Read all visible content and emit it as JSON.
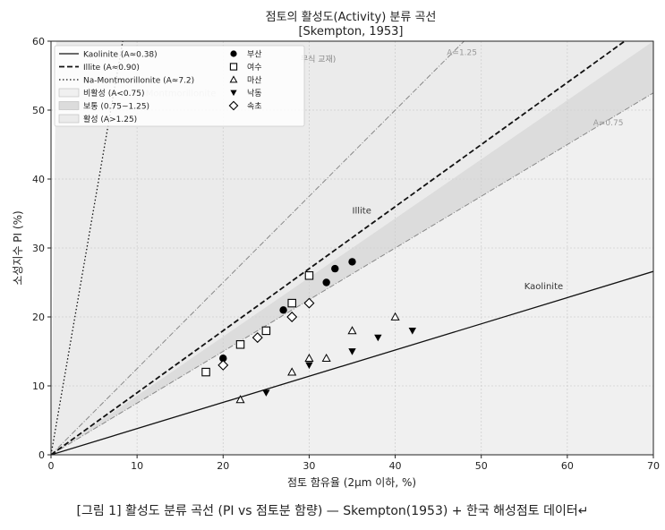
{
  "chart_data": {
    "type": "scatter",
    "title": "점토의 활성도(Activity) 분류 곡선",
    "subtitle": "[Skempton, 1953]",
    "xlabel": "점토 함유율 (2μm 이하, %)",
    "ylabel": "소성지수 PI (%)",
    "xlim": [
      0,
      70
    ],
    "ylim": [
      0,
      60
    ],
    "x_ticks": [
      0,
      10,
      20,
      30,
      40,
      50,
      60,
      70
    ],
    "y_ticks": [
      0,
      10,
      20,
      30,
      40,
      50,
      60
    ],
    "grid": true,
    "legend_placement": "top-left",
    "zones": [
      {
        "label": "비활성 (A<0.75)",
        "a_min": 0,
        "a_max": 0.75,
        "color": "#f0f0f0"
      },
      {
        "label": "보통 (0.75~1.25)",
        "a_min": 0.75,
        "a_max": 1.25,
        "color": "#dcdcdc"
      },
      {
        "label": "활성 (A>1.25)",
        "a_min": 1.25,
        "a_max": 100,
        "color": "#ebebeb"
      }
    ],
    "boundary_labels": [
      {
        "text": "A=1.25",
        "slope": 1.25,
        "x": 46
      },
      {
        "text": "A=0.75",
        "slope": 0.75,
        "x": 63
      }
    ],
    "lines": [
      {
        "name": "Kaolinite  (A≈0.38)",
        "slope": 0.38,
        "style": "solid",
        "label": "Kaolinite",
        "label_x": 55,
        "label_y": 24
      },
      {
        "name": "Illite  (A≈0.90)",
        "slope": 0.9,
        "style": "dashed",
        "label": "Illite",
        "label_x": 35,
        "label_y": 35
      },
      {
        "name": "Na-Montmorillonite  (A≈7.2)",
        "slope": 7.2,
        "style": "dotted",
        "label": "Montmorillonite",
        "label_x": 11,
        "label_y": 52
      }
    ],
    "background_text": [
      {
        "text": "무식 교재)",
        "x": 29,
        "y": 57
      }
    ],
    "series": [
      {
        "name": "부산",
        "marker": "circle",
        "x": [
          20,
          27,
          32,
          33,
          35
        ],
        "y": [
          14,
          21,
          25,
          27,
          28
        ]
      },
      {
        "name": "여수",
        "marker": "square",
        "x": [
          18,
          22,
          25,
          28,
          30
        ],
        "y": [
          12,
          16,
          18,
          22,
          26
        ]
      },
      {
        "name": "마산",
        "marker": "triangle-up",
        "x": [
          22,
          28,
          30,
          32,
          35,
          40
        ],
        "y": [
          8,
          12,
          14,
          14,
          18,
          20
        ]
      },
      {
        "name": "낙동",
        "marker": "triangle-down",
        "x": [
          25,
          30,
          35,
          38,
          42
        ],
        "y": [
          9,
          13,
          15,
          17,
          18
        ]
      },
      {
        "name": "속초",
        "marker": "diamond",
        "x": [
          20,
          24,
          28,
          30
        ],
        "y": [
          13,
          17,
          20,
          22
        ]
      }
    ]
  },
  "caption": "[그림 1] 활성도 분류 곡선 (PI vs 점토분 함량) — Skempton(1953) + 한국 해성점토 데이터↵"
}
